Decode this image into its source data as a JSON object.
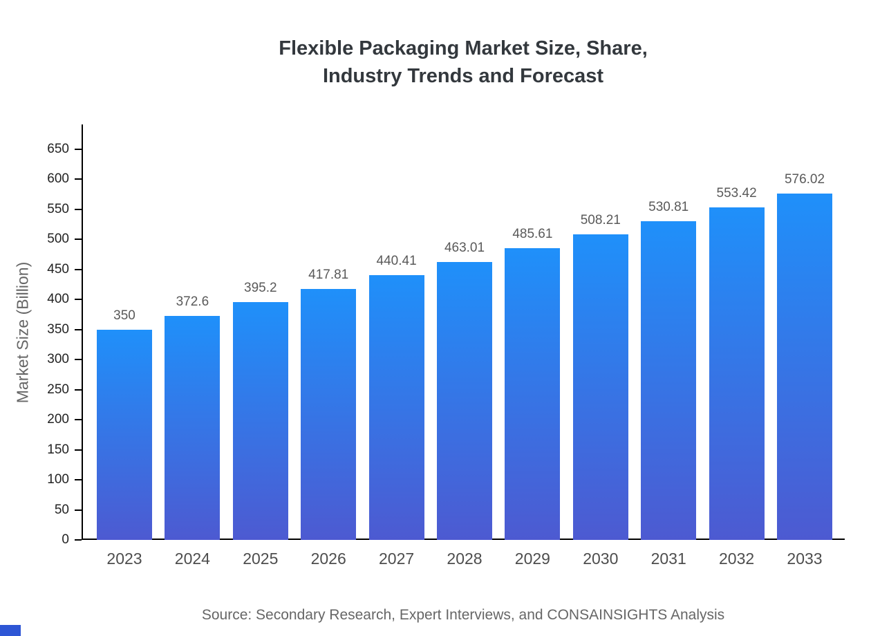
{
  "chart_data": {
    "type": "bar",
    "title": "Flexible Packaging Market Size, Share,\nIndustry Trends and Forecast",
    "categories": [
      "2023",
      "2024",
      "2025",
      "2026",
      "2027",
      "2028",
      "2029",
      "2030",
      "2031",
      "2032",
      "2033"
    ],
    "values": [
      350,
      372.6,
      395.2,
      417.81,
      440.41,
      463.01,
      485.61,
      508.21,
      530.81,
      553.42,
      576.02
    ],
    "value_labels": [
      "350",
      "372.6",
      "395.2",
      "417.81",
      "440.41",
      "463.01",
      "485.61",
      "508.21",
      "530.81",
      "553.42",
      "576.02"
    ],
    "xlabel": "",
    "ylabel": "Market Size (Billion)",
    "ylim": [
      0,
      650
    ],
    "yticks": [
      0,
      50,
      100,
      150,
      200,
      250,
      300,
      350,
      400,
      450,
      500,
      550,
      600,
      650
    ],
    "grid": false,
    "legend": null,
    "bar_gradient_top": "#1f90fa",
    "bar_gradient_bottom": "#4d5ad1",
    "source": "Source: Secondary Research, Expert Interviews, and CONSAINSIGHTS Analysis"
  },
  "corner_accent_color": "#2e56d5"
}
